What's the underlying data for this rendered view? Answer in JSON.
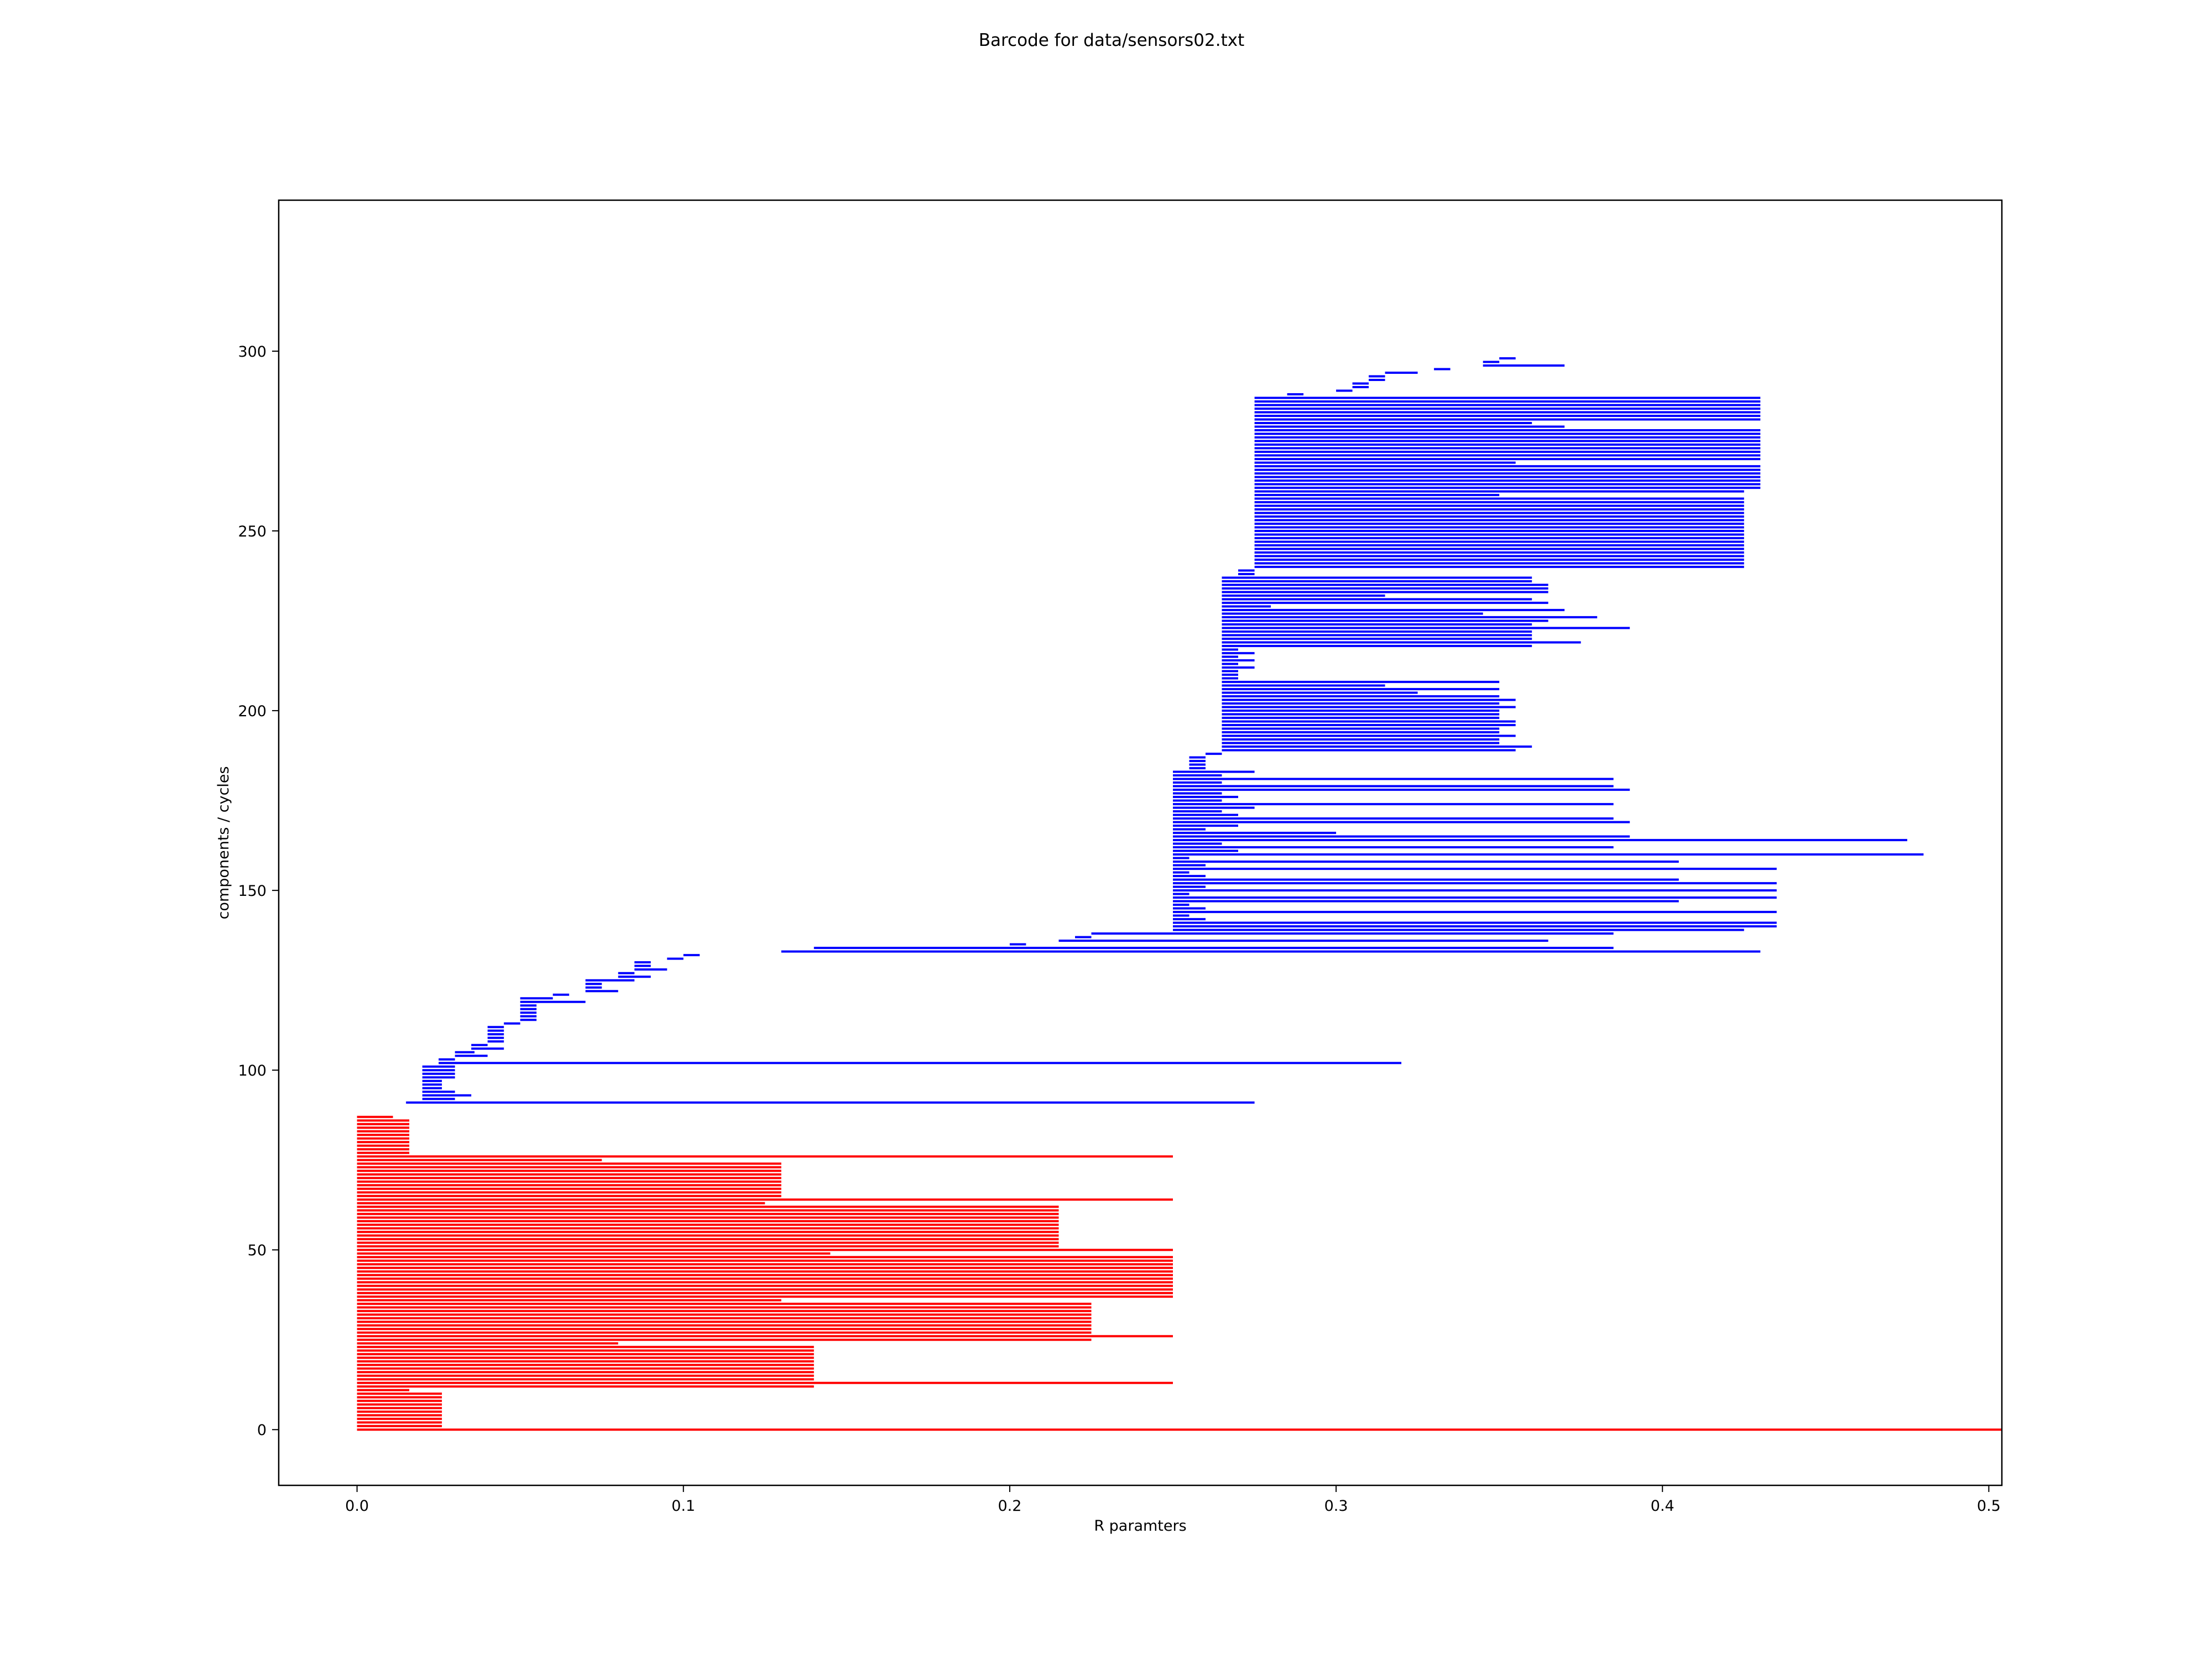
{
  "chart_data": {
    "type": "barcode",
    "title": "Barcode for data/sensors02.txt",
    "xlabel": "R paramters",
    "ylabel": "components / cycles",
    "xlim": [
      -0.024,
      0.504
    ],
    "ylim": [
      -15.5,
      342
    ],
    "xticks": [
      {
        "value": 0.0,
        "label": "0.0"
      },
      {
        "value": 0.1,
        "label": "0.1"
      },
      {
        "value": 0.2,
        "label": "0.2"
      },
      {
        "value": 0.3,
        "label": "0.3"
      },
      {
        "value": 0.4,
        "label": "0.4"
      },
      {
        "value": 0.5,
        "label": "0.5"
      }
    ],
    "yticks": [
      {
        "value": 0,
        "label": "0"
      },
      {
        "value": 50,
        "label": "50"
      },
      {
        "value": 100,
        "label": "100"
      },
      {
        "value": 150,
        "label": "150"
      },
      {
        "value": 200,
        "label": "200"
      },
      {
        "value": 250,
        "label": "250"
      },
      {
        "value": 300,
        "label": "300"
      }
    ],
    "grid": false,
    "colors": {
      "components": "#ff0000",
      "cycles": "#0000ff"
    },
    "components": {
      "note_index_start": 0,
      "intervals": [
        [
          0,
          0.504
        ],
        [
          0,
          0.026
        ],
        [
          0,
          0.026
        ],
        [
          0,
          0.026
        ],
        [
          0,
          0.026
        ],
        [
          0,
          0.026
        ],
        [
          0,
          0.026
        ],
        [
          0,
          0.026
        ],
        [
          0,
          0.026
        ],
        [
          0,
          0.026
        ],
        [
          0,
          0.026
        ],
        [
          0,
          0.016
        ],
        [
          0,
          0.14
        ],
        [
          0,
          0.25
        ],
        [
          0,
          0.14
        ],
        [
          0,
          0.14
        ],
        [
          0,
          0.14
        ],
        [
          0,
          0.14
        ],
        [
          0,
          0.14
        ],
        [
          0,
          0.14
        ],
        [
          0,
          0.14
        ],
        [
          0,
          0.14
        ],
        [
          0,
          0.14
        ],
        [
          0,
          0.14
        ],
        [
          0,
          0.08
        ],
        [
          0,
          0.225
        ],
        [
          0,
          0.25
        ],
        [
          0,
          0.225
        ],
        [
          0,
          0.225
        ],
        [
          0,
          0.225
        ],
        [
          0,
          0.225
        ],
        [
          0,
          0.225
        ],
        [
          0,
          0.225
        ],
        [
          0,
          0.225
        ],
        [
          0,
          0.225
        ],
        [
          0,
          0.225
        ],
        [
          0,
          0.13
        ],
        [
          0,
          0.25
        ],
        [
          0,
          0.25
        ],
        [
          0,
          0.25
        ],
        [
          0,
          0.25
        ],
        [
          0,
          0.25
        ],
        [
          0,
          0.25
        ],
        [
          0,
          0.25
        ],
        [
          0,
          0.25
        ],
        [
          0,
          0.25
        ],
        [
          0,
          0.25
        ],
        [
          0,
          0.25
        ],
        [
          0,
          0.25
        ],
        [
          0,
          0.145
        ],
        [
          0,
          0.25
        ],
        [
          0,
          0.215
        ],
        [
          0,
          0.215
        ],
        [
          0,
          0.215
        ],
        [
          0,
          0.215
        ],
        [
          0,
          0.215
        ],
        [
          0,
          0.215
        ],
        [
          0,
          0.215
        ],
        [
          0,
          0.215
        ],
        [
          0,
          0.215
        ],
        [
          0,
          0.215
        ],
        [
          0,
          0.215
        ],
        [
          0,
          0.215
        ],
        [
          0,
          0.125
        ],
        [
          0,
          0.25
        ],
        [
          0,
          0.13
        ],
        [
          0,
          0.13
        ],
        [
          0,
          0.13
        ],
        [
          0,
          0.13
        ],
        [
          0,
          0.13
        ],
        [
          0,
          0.13
        ],
        [
          0,
          0.13
        ],
        [
          0,
          0.13
        ],
        [
          0,
          0.13
        ],
        [
          0,
          0.13
        ],
        [
          0,
          0.075
        ],
        [
          0,
          0.25
        ],
        [
          0,
          0.016
        ],
        [
          0,
          0.016
        ],
        [
          0,
          0.016
        ],
        [
          0,
          0.016
        ],
        [
          0,
          0.016
        ],
        [
          0,
          0.016
        ],
        [
          0,
          0.016
        ],
        [
          0,
          0.016
        ],
        [
          0,
          0.016
        ],
        [
          0,
          0.016
        ],
        [
          0,
          0.011
        ]
      ]
    },
    "cycles": {
      "index_start": 91,
      "intervals": [
        [
          0.015,
          0.275
        ],
        [
          0.02,
          0.03
        ],
        [
          0.02,
          0.035
        ],
        [
          0.02,
          0.03
        ],
        [
          0.02,
          0.026
        ],
        [
          0.02,
          0.026
        ],
        [
          0.02,
          0.026
        ],
        [
          0.02,
          0.03
        ],
        [
          0.02,
          0.03
        ],
        [
          0.02,
          0.03
        ],
        [
          0.02,
          0.03
        ],
        [
          0.025,
          0.32
        ],
        [
          0.025,
          0.03
        ],
        [
          0.03,
          0.04
        ],
        [
          0.03,
          0.036
        ],
        [
          0.035,
          0.045
        ],
        [
          0.035,
          0.04
        ],
        [
          0.04,
          0.045
        ],
        [
          0.04,
          0.045
        ],
        [
          0.04,
          0.045
        ],
        [
          0.04,
          0.045
        ],
        [
          0.04,
          0.045
        ],
        [
          0.045,
          0.05
        ],
        [
          0.05,
          0.055
        ],
        [
          0.05,
          0.055
        ],
        [
          0.05,
          0.055
        ],
        [
          0.05,
          0.055
        ],
        [
          0.05,
          0.055
        ],
        [
          0.05,
          0.07
        ],
        [
          0.05,
          0.06
        ],
        [
          0.06,
          0.065
        ],
        [
          0.07,
          0.08
        ],
        [
          0.07,
          0.075
        ],
        [
          0.07,
          0.075
        ],
        [
          0.07,
          0.085
        ],
        [
          0.08,
          0.09
        ],
        [
          0.08,
          0.085
        ],
        [
          0.085,
          0.095
        ],
        [
          0.085,
          0.09
        ],
        [
          0.085,
          0.09
        ],
        [
          0.095,
          0.1
        ],
        [
          0.1,
          0.105
        ],
        [
          0.13,
          0.43
        ],
        [
          0.14,
          0.385
        ],
        [
          0.2,
          0.205
        ],
        [
          0.215,
          0.365
        ],
        [
          0.22,
          0.225
        ],
        [
          0.225,
          0.385
        ],
        [
          0.25,
          0.425
        ],
        [
          0.25,
          0.435
        ],
        [
          0.25,
          0.435
        ],
        [
          0.25,
          0.26
        ],
        [
          0.25,
          0.255
        ],
        [
          0.25,
          0.435
        ],
        [
          0.25,
          0.26
        ],
        [
          0.25,
          0.255
        ],
        [
          0.25,
          0.405
        ],
        [
          0.25,
          0.435
        ],
        [
          0.25,
          0.255
        ],
        [
          0.25,
          0.435
        ],
        [
          0.25,
          0.26
        ],
        [
          0.25,
          0.435
        ],
        [
          0.25,
          0.405
        ],
        [
          0.25,
          0.26
        ],
        [
          0.25,
          0.255
        ],
        [
          0.25,
          0.435
        ],
        [
          0.25,
          0.26
        ],
        [
          0.25,
          0.405
        ],
        [
          0.25,
          0.255
        ],
        [
          0.25,
          0.48
        ],
        [
          0.25,
          0.27
        ],
        [
          0.25,
          0.385
        ],
        [
          0.25,
          0.265
        ],
        [
          0.25,
          0.475
        ],
        [
          0.25,
          0.39
        ],
        [
          0.25,
          0.3
        ],
        [
          0.25,
          0.26
        ],
        [
          0.25,
          0.27
        ],
        [
          0.25,
          0.39
        ],
        [
          0.25,
          0.385
        ],
        [
          0.25,
          0.27
        ],
        [
          0.25,
          0.265
        ],
        [
          0.25,
          0.275
        ],
        [
          0.25,
          0.385
        ],
        [
          0.25,
          0.265
        ],
        [
          0.25,
          0.27
        ],
        [
          0.25,
          0.265
        ],
        [
          0.25,
          0.39
        ],
        [
          0.25,
          0.385
        ],
        [
          0.25,
          0.265
        ],
        [
          0.25,
          0.385
        ],
        [
          0.25,
          0.265
        ],
        [
          0.25,
          0.275
        ],
        [
          0.255,
          0.26
        ],
        [
          0.255,
          0.26
        ],
        [
          0.255,
          0.26
        ],
        [
          0.255,
          0.26
        ],
        [
          0.26,
          0.265
        ],
        [
          0.265,
          0.355
        ],
        [
          0.265,
          0.36
        ],
        [
          0.265,
          0.35
        ],
        [
          0.265,
          0.35
        ],
        [
          0.265,
          0.355
        ],
        [
          0.265,
          0.35
        ],
        [
          0.265,
          0.35
        ],
        [
          0.265,
          0.355
        ],
        [
          0.265,
          0.355
        ],
        [
          0.265,
          0.35
        ],
        [
          0.265,
          0.35
        ],
        [
          0.265,
          0.35
        ],
        [
          0.265,
          0.355
        ],
        [
          0.265,
          0.35
        ],
        [
          0.265,
          0.355
        ],
        [
          0.265,
          0.35
        ],
        [
          0.265,
          0.325
        ],
        [
          0.265,
          0.35
        ],
        [
          0.265,
          0.315
        ],
        [
          0.265,
          0.35
        ],
        [
          0.265,
          0.27
        ],
        [
          0.265,
          0.27
        ],
        [
          0.265,
          0.27
        ],
        [
          0.265,
          0.275
        ],
        [
          0.265,
          0.27
        ],
        [
          0.265,
          0.275
        ],
        [
          0.265,
          0.27
        ],
        [
          0.265,
          0.275
        ],
        [
          0.265,
          0.27
        ],
        [
          0.265,
          0.36
        ],
        [
          0.265,
          0.375
        ],
        [
          0.265,
          0.36
        ],
        [
          0.265,
          0.36
        ],
        [
          0.265,
          0.36
        ],
        [
          0.265,
          0.39
        ],
        [
          0.265,
          0.36
        ],
        [
          0.265,
          0.365
        ],
        [
          0.265,
          0.38
        ],
        [
          0.265,
          0.345
        ],
        [
          0.265,
          0.37
        ],
        [
          0.265,
          0.28
        ],
        [
          0.265,
          0.365
        ],
        [
          0.265,
          0.36
        ],
        [
          0.265,
          0.315
        ],
        [
          0.265,
          0.365
        ],
        [
          0.265,
          0.365
        ],
        [
          0.265,
          0.365
        ],
        [
          0.265,
          0.36
        ],
        [
          0.265,
          0.36
        ],
        [
          0.27,
          0.275
        ],
        [
          0.27,
          0.275
        ],
        [
          0.275,
          0.425
        ],
        [
          0.275,
          0.425
        ],
        [
          0.275,
          0.425
        ],
        [
          0.275,
          0.425
        ],
        [
          0.275,
          0.425
        ],
        [
          0.275,
          0.425
        ],
        [
          0.275,
          0.425
        ],
        [
          0.275,
          0.425
        ],
        [
          0.275,
          0.425
        ],
        [
          0.275,
          0.425
        ],
        [
          0.275,
          0.425
        ],
        [
          0.275,
          0.425
        ],
        [
          0.275,
          0.425
        ],
        [
          0.275,
          0.425
        ],
        [
          0.275,
          0.425
        ],
        [
          0.275,
          0.425
        ],
        [
          0.275,
          0.425
        ],
        [
          0.275,
          0.425
        ],
        [
          0.275,
          0.425
        ],
        [
          0.275,
          0.425
        ],
        [
          0.275,
          0.35
        ],
        [
          0.275,
          0.425
        ],
        [
          0.275,
          0.43
        ],
        [
          0.275,
          0.43
        ],
        [
          0.275,
          0.43
        ],
        [
          0.275,
          0.43
        ],
        [
          0.275,
          0.43
        ],
        [
          0.275,
          0.43
        ],
        [
          0.275,
          0.43
        ],
        [
          0.275,
          0.355
        ],
        [
          0.275,
          0.43
        ],
        [
          0.275,
          0.43
        ],
        [
          0.275,
          0.43
        ],
        [
          0.275,
          0.43
        ],
        [
          0.275,
          0.43
        ],
        [
          0.275,
          0.43
        ],
        [
          0.275,
          0.43
        ],
        [
          0.275,
          0.43
        ],
        [
          0.275,
          0.43
        ],
        [
          0.275,
          0.37
        ],
        [
          0.275,
          0.36
        ],
        [
          0.275,
          0.43
        ],
        [
          0.275,
          0.43
        ],
        [
          0.275,
          0.43
        ],
        [
          0.275,
          0.43
        ],
        [
          0.275,
          0.43
        ],
        [
          0.275,
          0.43
        ],
        [
          0.275,
          0.43
        ],
        [
          0.285,
          0.29
        ],
        [
          0.3,
          0.305
        ],
        [
          0.305,
          0.31
        ],
        [
          0.305,
          0.31
        ],
        [
          0.31,
          0.315
        ],
        [
          0.31,
          0.315
        ],
        [
          0.315,
          0.325
        ],
        [
          0.33,
          0.335
        ],
        [
          0.345,
          0.37
        ],
        [
          0.345,
          0.35
        ],
        [
          0.35,
          0.355
        ]
      ]
    }
  }
}
